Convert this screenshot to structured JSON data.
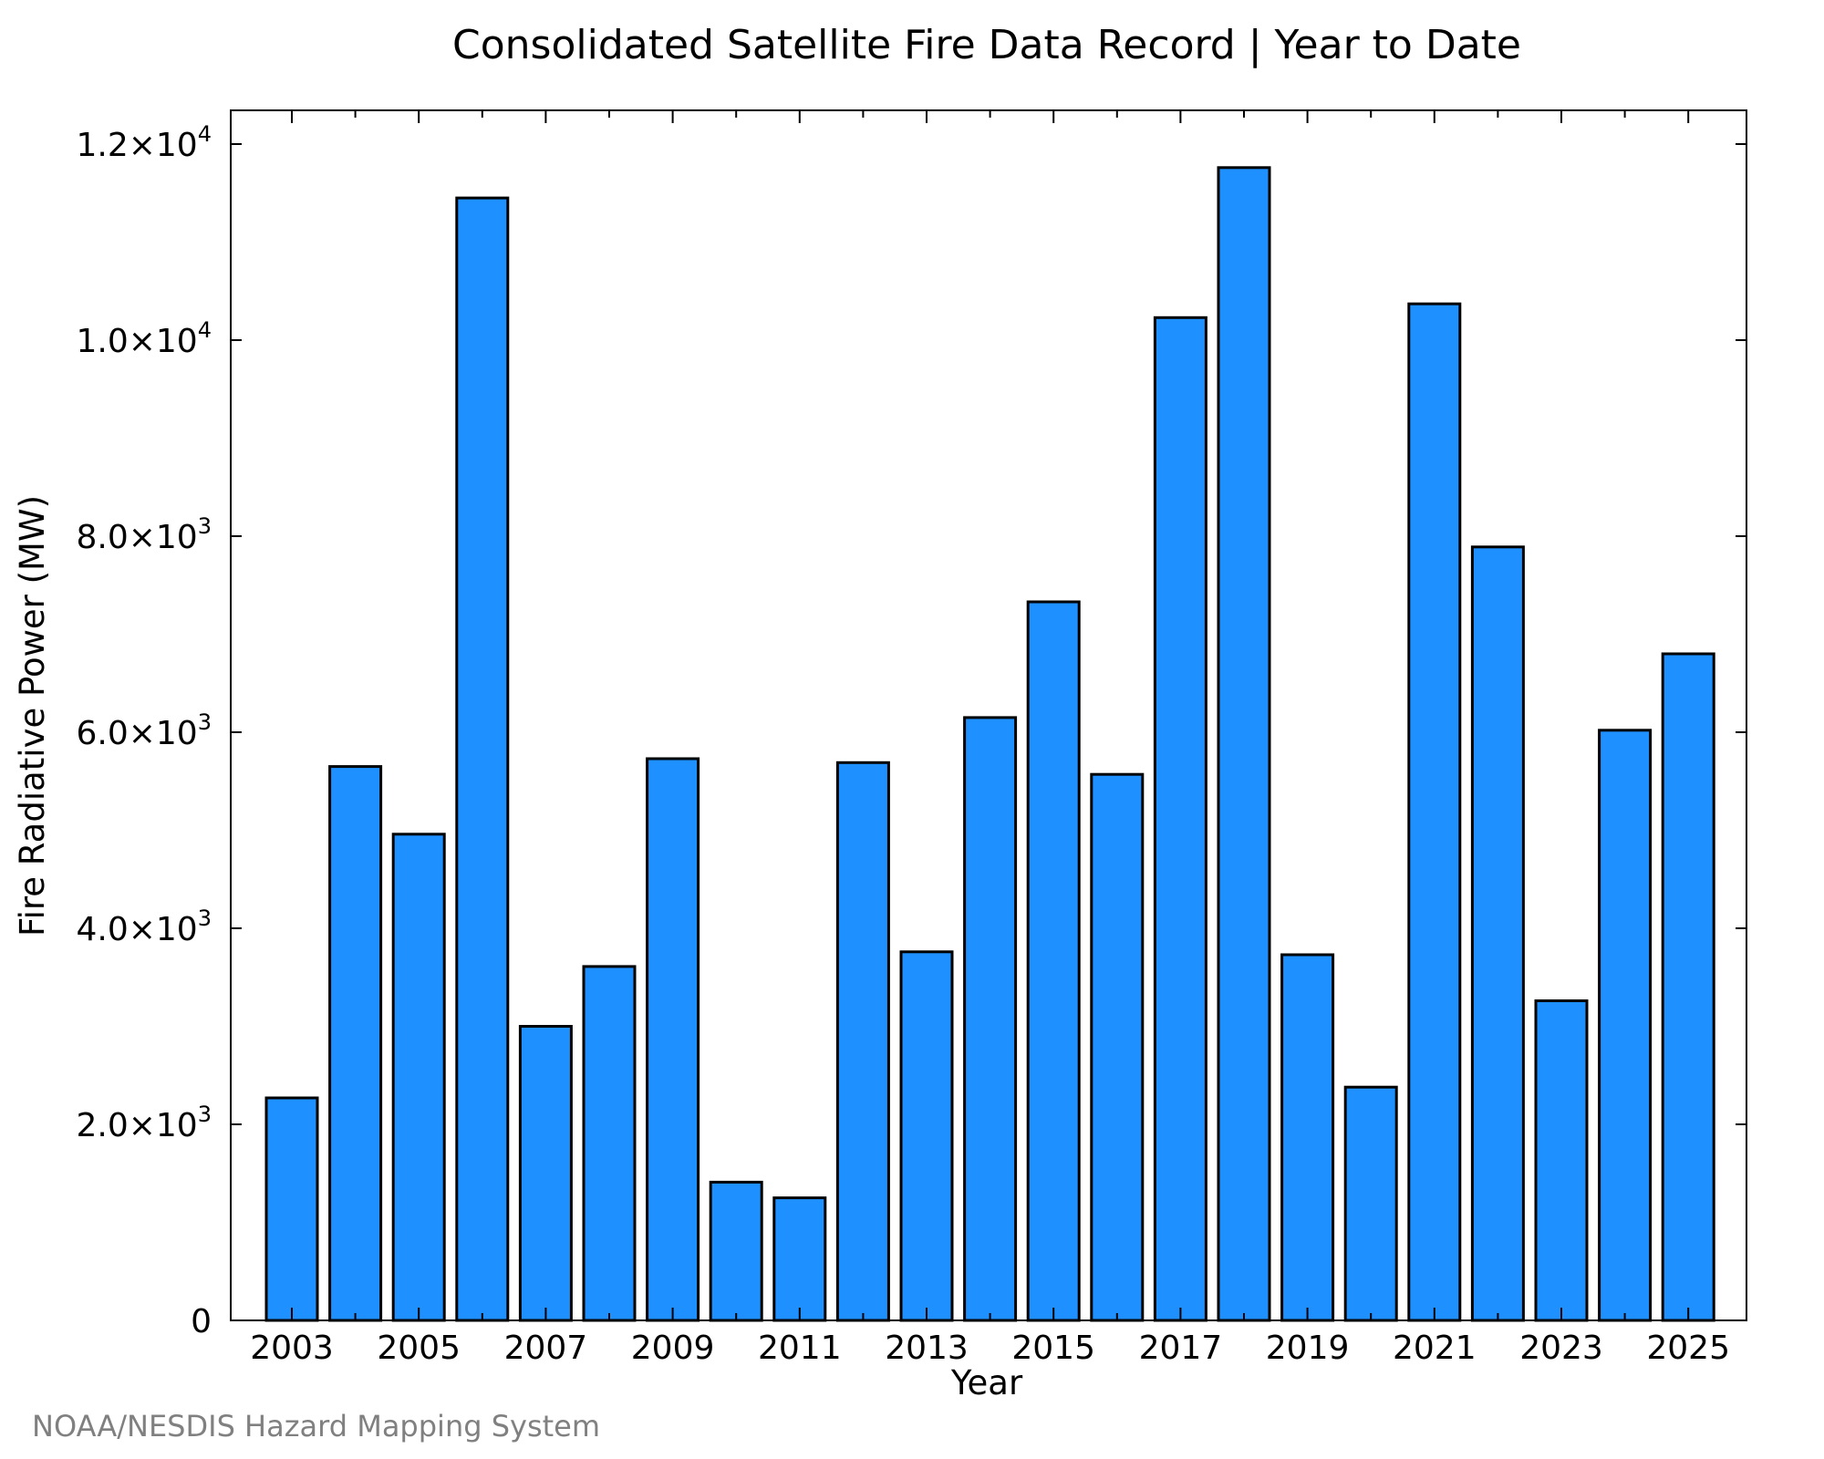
{
  "chart_data": {
    "type": "bar",
    "title": "Consolidated Satellite Fire Data Record | Year to Date",
    "xlabel": "Year",
    "ylabel": "Fire Radiative Power (MW)",
    "categories": [
      "2003",
      "2004",
      "2005",
      "2006",
      "2007",
      "2008",
      "2009",
      "2010",
      "2011",
      "2012",
      "2013",
      "2014",
      "2015",
      "2016",
      "2017",
      "2018",
      "2019",
      "2020",
      "2021",
      "2022",
      "2023",
      "2024",
      "2025"
    ],
    "values": [
      2270,
      5650,
      4960,
      11450,
      3000,
      3610,
      5730,
      1410,
      1250,
      5690,
      3760,
      6150,
      7330,
      5570,
      10230,
      11760,
      3730,
      2380,
      10370,
      7890,
      3260,
      6020,
      6800
    ],
    "ylim": [
      0,
      12000
    ],
    "y_ticks": [
      {
        "value": 0,
        "mantissa": "0",
        "exp": ""
      },
      {
        "value": 2000,
        "mantissa": "2.0×10",
        "exp": "3"
      },
      {
        "value": 4000,
        "mantissa": "4.0×10",
        "exp": "3"
      },
      {
        "value": 6000,
        "mantissa": "6.0×10",
        "exp": "3"
      },
      {
        "value": 8000,
        "mantissa": "8.0×10",
        "exp": "3"
      },
      {
        "value": 10000,
        "mantissa": "1.0×10",
        "exp": "4"
      },
      {
        "value": 12000,
        "mantissa": "1.2×10",
        "exp": "4"
      }
    ],
    "x_tick_labels": [
      "2003",
      "2005",
      "2007",
      "2009",
      "2011",
      "2013",
      "2015",
      "2017",
      "2019",
      "2021",
      "2023",
      "2025"
    ],
    "bar_color": "#1e90ff",
    "legend": "none",
    "grid": false
  },
  "footer": {
    "credit": "NOAA/NESDIS Hazard Mapping System"
  }
}
